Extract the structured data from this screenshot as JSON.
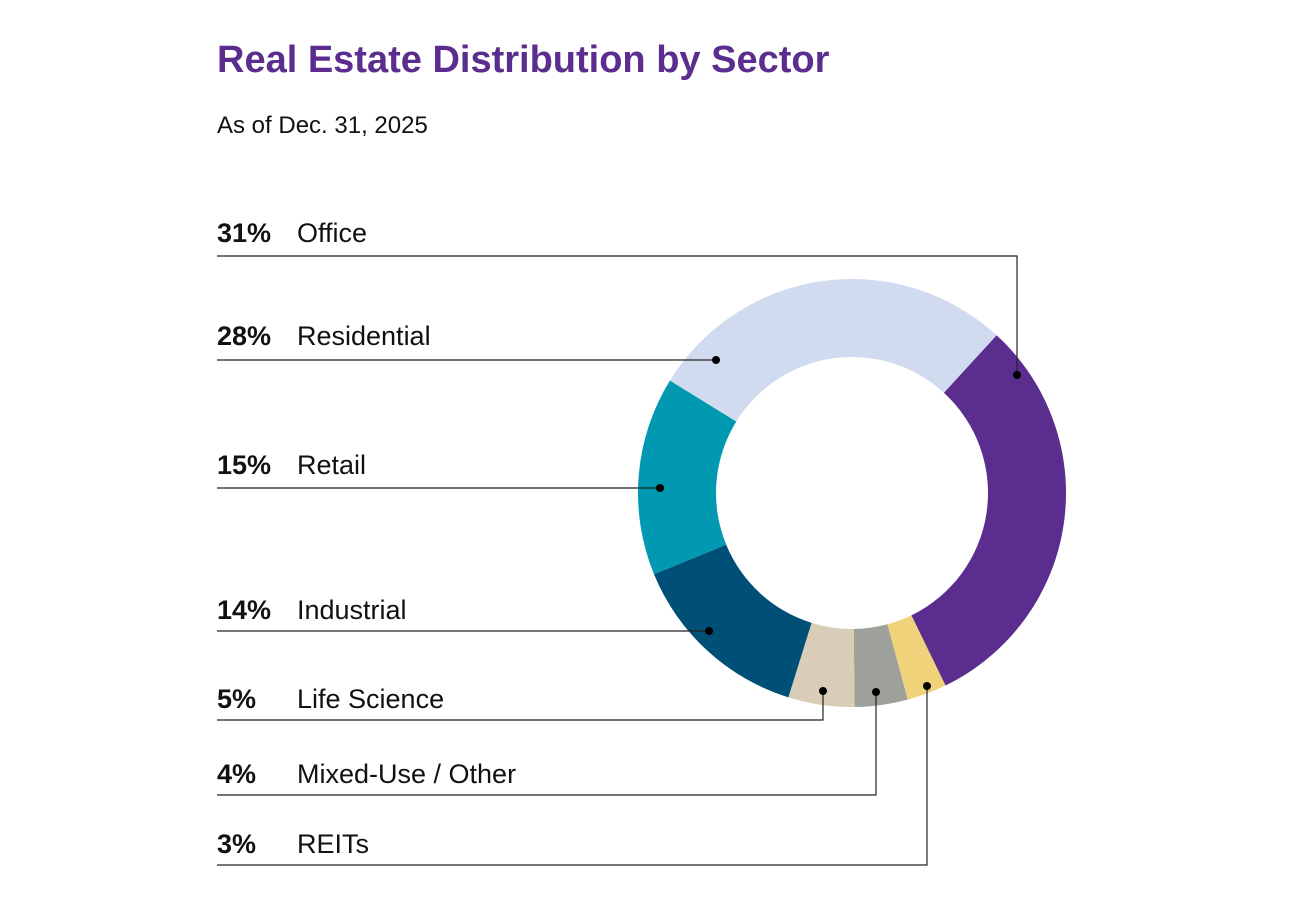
{
  "chart_data": {
    "type": "pie",
    "donut": true,
    "title": "Real Estate Distribution by Sector",
    "subtitle": "As of Dec. 31, 2025",
    "legend_placement": "left",
    "slices": [
      {
        "label": "Office",
        "value": 31,
        "pct_label": "31%",
        "color": "#5b2d8e"
      },
      {
        "label": "REITs",
        "value": 3,
        "pct_label": "3%",
        "color": "#f0d27a"
      },
      {
        "label": "Mixed-Use / Other",
        "value": 4,
        "pct_label": "4%",
        "color": "#9ea19a"
      },
      {
        "label": "Life Science",
        "value": 5,
        "pct_label": "5%",
        "color": "#d9cdb7"
      },
      {
        "label": "Industrial",
        "value": 14,
        "pct_label": "14%",
        "color": "#004f76"
      },
      {
        "label": "Retail",
        "value": 15,
        "pct_label": "15%",
        "color": "#0099b1"
      },
      {
        "label": "Residential",
        "value": 28,
        "pct_label": "28%",
        "color": "#d0dbef"
      }
    ],
    "label_order": [
      "Office",
      "Residential",
      "Retail",
      "Industrial",
      "Life Science",
      "Mixed-Use / Other",
      "REITs"
    ]
  }
}
